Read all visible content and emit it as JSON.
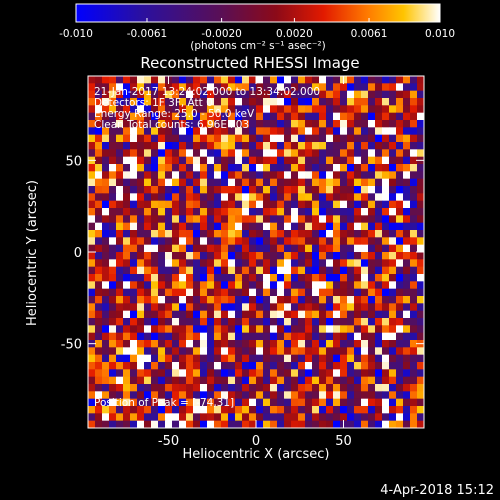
{
  "title": "Reconstructed RHESSI Image",
  "info_lines": [
    "21-Jan-2017 13:24:02.000 to 13:34:02.000",
    "Detectors: 1F 3F, Att 0",
    "Energy Range: 25.0 - 50.0 keV",
    "Clean     Total counts: 6.96E+03"
  ],
  "peak_label": "Position of Peak = [-74,31]",
  "footer_date": "4-Apr-2018 15:12",
  "colorbar": {
    "min": -0.01,
    "max": 0.01,
    "tick_values": [
      -0.01,
      -0.0061,
      -0.002,
      0.002,
      0.0061,
      0.01
    ],
    "tick_labels": [
      "-0.010",
      "-0.0061",
      "-0.0020",
      "0.0020",
      "0.0061",
      "0.010"
    ],
    "units_text": "(photons cm⁻² s⁻¹ asec⁻²)"
  },
  "chart_data": {
    "type": "heatmap",
    "title": "Reconstructed RHESSI Image",
    "xlabel": "Heliocentric X (arcsec)",
    "ylabel": "Heliocentric Y (arcsec)",
    "xlim": [
      -96,
      96
    ],
    "ylim": [
      -96,
      96
    ],
    "x_ticks": [
      -50,
      0,
      50
    ],
    "y_ticks": [
      -50,
      0,
      50
    ],
    "pixel_size_arcsec": 4,
    "grid": false,
    "colorscale": "IDL Rainbow-like (blue-purple-red-orange-yellow-white)",
    "value_range": [
      -0.01,
      0.01
    ],
    "peak_position": [
      -74,
      31
    ]
  }
}
